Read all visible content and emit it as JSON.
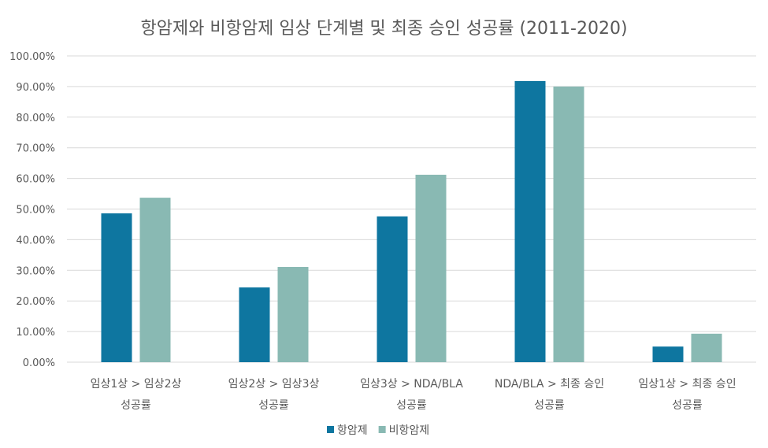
{
  "chart_data": {
    "type": "bar",
    "title": "항암제와 비항암제 임상 단계별 및 최종 승인 성공률 (2011-2020)",
    "categories": [
      [
        "임상1상 > 임상2상",
        "성공률"
      ],
      [
        "임상2상 > 임상3상",
        "성공률"
      ],
      [
        "임상3상 > NDA/BLA",
        "성공률"
      ],
      [
        "NDA/BLA > 최종 승인",
        "성공률"
      ],
      [
        "임상1상 > 최종 승인",
        "성공률"
      ]
    ],
    "series": [
      {
        "name": "항암제",
        "color": "#0e76a0",
        "values": [
          48.6,
          24.4,
          47.6,
          91.8,
          5.1
        ]
      },
      {
        "name": "비항암제",
        "color": "#89b9b3",
        "values": [
          53.7,
          31.1,
          61.2,
          90.0,
          9.3
        ]
      }
    ],
    "ylim": [
      0,
      100
    ],
    "yticks": [
      "0.00%",
      "10.00%",
      "20.00%",
      "30.00%",
      "40.00%",
      "50.00%",
      "60.00%",
      "70.00%",
      "80.00%",
      "90.00%",
      "100.00%"
    ],
    "xlabel": "",
    "ylabel": "",
    "grid": true,
    "legend": "bottom"
  }
}
